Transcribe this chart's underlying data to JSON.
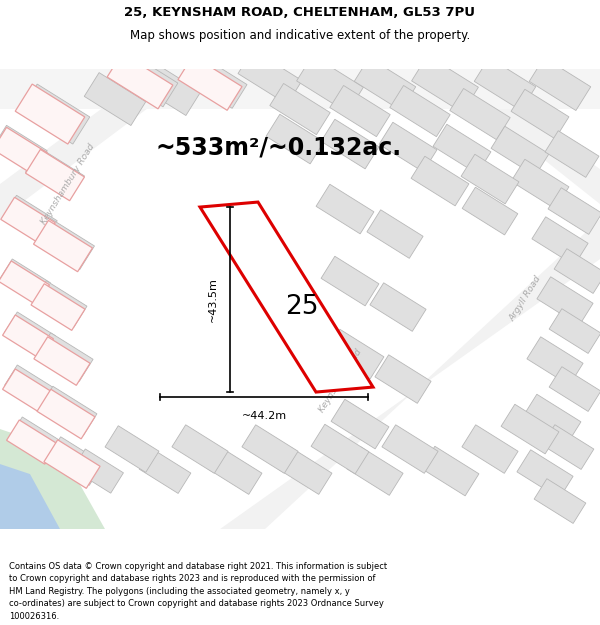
{
  "title_line1": "25, KEYNSHAM ROAD, CHELTENHAM, GL53 7PU",
  "title_line2": "Map shows position and indicative extent of the property.",
  "area_text": "~533m²/~0.132ac.",
  "property_number": "25",
  "dim_height": "~43.5m",
  "dim_width": "~44.2m",
  "footer_lines": [
    "Contains OS data © Crown copyright and database right 2021. This information is subject",
    "to Crown copyright and database rights 2023 and is reproduced with the permission of",
    "HM Land Registry. The polygons (including the associated geometry, namely x, y",
    "co-ordinates) are subject to Crown copyright and database rights 2023 Ordnance Survey",
    "100026316."
  ],
  "bg_color": "#ffffff",
  "map_bg": "#f7f7f7",
  "road_bg": "#f0f0f0",
  "building_fill": "#e0e0e0",
  "building_edge": "#b8b8b8",
  "prop_fill": "#f0f0f0",
  "prop_edge_red": "#dd0000",
  "prop_edge_pink": "#e8a0a0",
  "road_label_color": "#aaaaaa",
  "title_fontsize": 9.5,
  "subtitle_fontsize": 8.5,
  "area_fontsize": 17,
  "label_fontsize": 8,
  "number_fontsize": 19,
  "footer_fontsize": 6.0
}
